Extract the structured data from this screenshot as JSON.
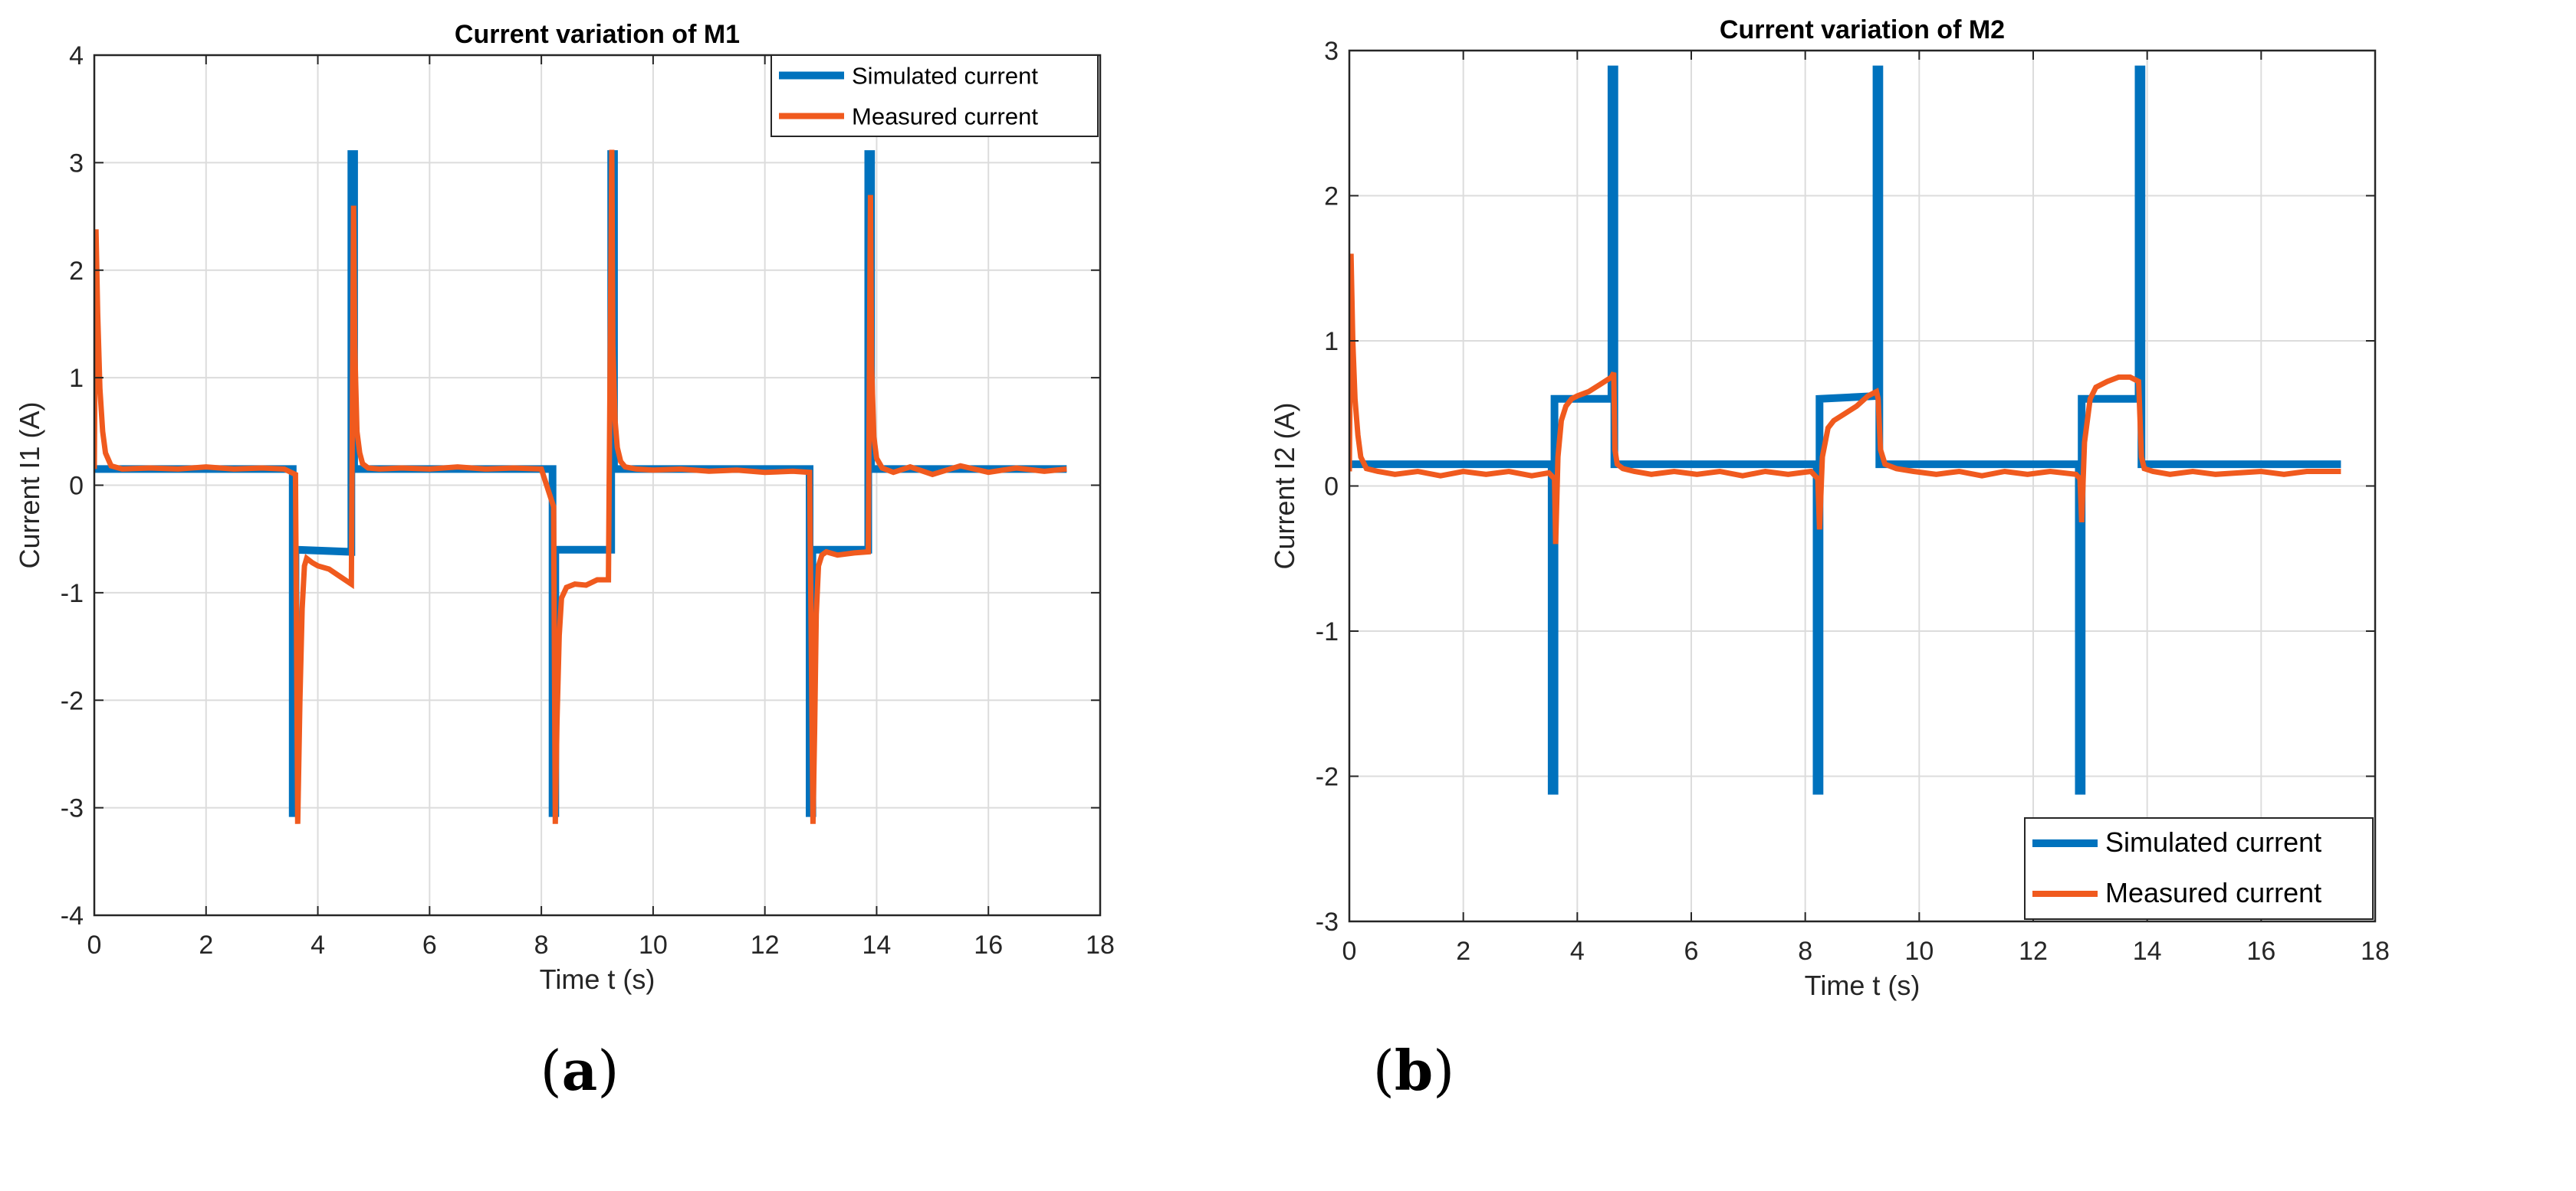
{
  "colors": {
    "simulated": "#0072BD",
    "measured": "#F05A1E",
    "grid": "#dcdcdc",
    "axis": "#262626"
  },
  "captions": {
    "a_open": "(",
    "a_letter": "a",
    "a_close": ")",
    "b_open": "(",
    "b_letter": "b",
    "b_close": ")"
  },
  "chart_data": [
    {
      "id": "a",
      "type": "line",
      "title": "Current variation of M1",
      "xlabel": "Time t (s)",
      "ylabel": "Current I1 (A)",
      "xlim": [
        0,
        18
      ],
      "ylim": [
        -4,
        4
      ],
      "xticks": [
        0,
        2,
        4,
        6,
        8,
        10,
        12,
        14,
        16,
        18
      ],
      "yticks": [
        4,
        3,
        2,
        1,
        0,
        -1,
        -2,
        -3,
        -4
      ],
      "grid": true,
      "legend": {
        "location": "top-right",
        "entries": [
          "Simulated current",
          "Measured current"
        ]
      },
      "series": [
        {
          "name": "Simulated current",
          "x": [
            0,
            3.55,
            3.55,
            3.6,
            3.6,
            4.6,
            4.6,
            4.65,
            4.65,
            8.2,
            8.2,
            8.25,
            8.25,
            9.25,
            9.25,
            9.3,
            9.3,
            12.8,
            12.8,
            12.85,
            12.85,
            13.85,
            13.85,
            13.9,
            13.9,
            17.4
          ],
          "y": [
            0.15,
            0.15,
            -3.05,
            -3.05,
            -0.6,
            -0.62,
            3.08,
            3.08,
            0.15,
            0.15,
            -3.05,
            -3.05,
            -0.6,
            -0.6,
            3.08,
            3.08,
            0.15,
            0.15,
            -3.05,
            -3.05,
            -0.6,
            -0.6,
            3.08,
            3.08,
            0.15,
            0.15
          ]
        },
        {
          "name": "Measured current",
          "x": [
            0,
            0.03,
            0.06,
            0.1,
            0.15,
            0.2,
            0.3,
            0.5,
            1,
            1.5,
            2,
            2.5,
            3,
            3.4,
            3.6,
            3.64,
            3.68,
            3.72,
            3.76,
            3.8,
            3.9,
            4.0,
            4.2,
            4.4,
            4.6,
            4.64,
            4.66,
            4.7,
            4.75,
            4.8,
            4.9,
            5.1,
            5.5,
            6,
            6.5,
            7,
            7.5,
            8,
            8.22,
            8.25,
            8.28,
            8.32,
            8.36,
            8.45,
            8.6,
            8.8,
            9.0,
            9.2,
            9.26,
            9.28,
            9.32,
            9.36,
            9.42,
            9.5,
            9.7,
            10,
            10.5,
            11,
            11.5,
            12,
            12.5,
            12.8,
            12.86,
            12.89,
            12.92,
            12.96,
            13.02,
            13.1,
            13.3,
            13.6,
            13.85,
            13.89,
            13.91,
            13.95,
            14.0,
            14.1,
            14.3,
            14.6,
            15,
            15.5,
            16,
            16.5,
            17,
            17.4
          ],
          "y": [
            0.15,
            2.38,
            1.6,
            0.9,
            0.5,
            0.3,
            0.18,
            0.15,
            0.16,
            0.15,
            0.17,
            0.15,
            0.16,
            0.15,
            0.1,
            -3.15,
            -2.0,
            -1.15,
            -0.75,
            -0.68,
            -0.72,
            -0.75,
            -0.78,
            -0.85,
            -0.92,
            2.6,
            1.3,
            0.5,
            0.3,
            0.2,
            0.16,
            0.15,
            0.16,
            0.15,
            0.17,
            0.15,
            0.16,
            0.15,
            -0.2,
            -3.15,
            -2.2,
            -1.4,
            -1.05,
            -0.95,
            -0.92,
            -0.93,
            -0.88,
            -0.88,
            3.12,
            1.3,
            0.6,
            0.35,
            0.22,
            0.17,
            0.15,
            0.14,
            0.15,
            0.13,
            0.14,
            0.12,
            0.13,
            0.12,
            -3.15,
            -2.3,
            -1.2,
            -0.75,
            -0.65,
            -0.62,
            -0.65,
            -0.63,
            -0.62,
            2.7,
            1.1,
            0.45,
            0.25,
            0.16,
            0.12,
            0.17,
            0.1,
            0.18,
            0.12,
            0.16,
            0.13,
            0.15
          ]
        }
      ]
    },
    {
      "id": "b",
      "type": "line",
      "title": "Current variation of M2",
      "xlabel": "Time t (s)",
      "ylabel": "Current I2 (A)",
      "xlim": [
        0,
        18
      ],
      "ylim": [
        -3,
        3
      ],
      "xticks": [
        0,
        2,
        4,
        6,
        8,
        10,
        12,
        14,
        16,
        18
      ],
      "yticks": [
        3,
        2,
        1,
        0,
        -1,
        -2,
        -3
      ],
      "grid": true,
      "legend": {
        "location": "bottom-right",
        "entries": [
          "Simulated current",
          "Measured current"
        ]
      },
      "series": [
        {
          "name": "Simulated current",
          "x": [
            0,
            3.55,
            3.55,
            3.6,
            3.6,
            4.6,
            4.6,
            4.65,
            4.65,
            8.2,
            8.2,
            8.25,
            8.25,
            9.25,
            9.25,
            9.3,
            9.3,
            12.8,
            12.8,
            12.85,
            12.85,
            13.85,
            13.85,
            13.9,
            13.9,
            17.4
          ],
          "y": [
            0.15,
            0.15,
            -2.1,
            -2.1,
            0.6,
            0.6,
            2.87,
            2.87,
            0.15,
            0.15,
            -2.1,
            -2.1,
            0.6,
            0.62,
            2.87,
            2.87,
            0.15,
            0.15,
            -2.1,
            -2.1,
            0.6,
            0.6,
            2.87,
            2.87,
            0.15,
            0.15
          ]
        },
        {
          "name": "Measured current",
          "x": [
            0,
            0.03,
            0.06,
            0.1,
            0.15,
            0.2,
            0.3,
            0.5,
            0.8,
            1.2,
            1.6,
            2,
            2.4,
            2.8,
            3.2,
            3.5,
            3.6,
            3.62,
            3.66,
            3.72,
            3.8,
            3.9,
            4.0,
            4.2,
            4.4,
            4.6,
            4.64,
            4.66,
            4.7,
            4.8,
            5.0,
            5.3,
            5.7,
            6.1,
            6.5,
            6.9,
            7.3,
            7.7,
            8.1,
            8.22,
            8.25,
            8.3,
            8.4,
            8.5,
            8.7,
            8.9,
            9.1,
            9.25,
            9.28,
            9.32,
            9.4,
            9.6,
            9.9,
            10.3,
            10.7,
            11.1,
            11.5,
            11.9,
            12.3,
            12.75,
            12.82,
            12.85,
            12.9,
            13.0,
            13.1,
            13.3,
            13.5,
            13.7,
            13.85,
            13.9,
            13.95,
            14.1,
            14.4,
            14.8,
            15.2,
            15.6,
            16,
            16.4,
            16.8,
            17.4
          ],
          "y": [
            0.1,
            1.6,
            1.0,
            0.6,
            0.35,
            0.2,
            0.12,
            0.1,
            0.08,
            0.1,
            0.07,
            0.1,
            0.08,
            0.1,
            0.07,
            0.09,
            0.05,
            -0.4,
            0.2,
            0.45,
            0.55,
            0.6,
            0.62,
            0.65,
            0.7,
            0.75,
            0.78,
            0.25,
            0.15,
            0.12,
            0.1,
            0.08,
            0.1,
            0.08,
            0.1,
            0.07,
            0.1,
            0.08,
            0.1,
            0.05,
            -0.3,
            0.2,
            0.4,
            0.45,
            0.5,
            0.55,
            0.62,
            0.65,
            0.6,
            0.25,
            0.15,
            0.12,
            0.1,
            0.08,
            0.1,
            0.07,
            0.1,
            0.08,
            0.1,
            0.08,
            0.05,
            -0.25,
            0.3,
            0.6,
            0.68,
            0.72,
            0.75,
            0.75,
            0.72,
            0.2,
            0.12,
            0.1,
            0.08,
            0.1,
            0.08,
            0.09,
            0.1,
            0.08,
            0.1,
            0.1
          ]
        }
      ]
    }
  ]
}
